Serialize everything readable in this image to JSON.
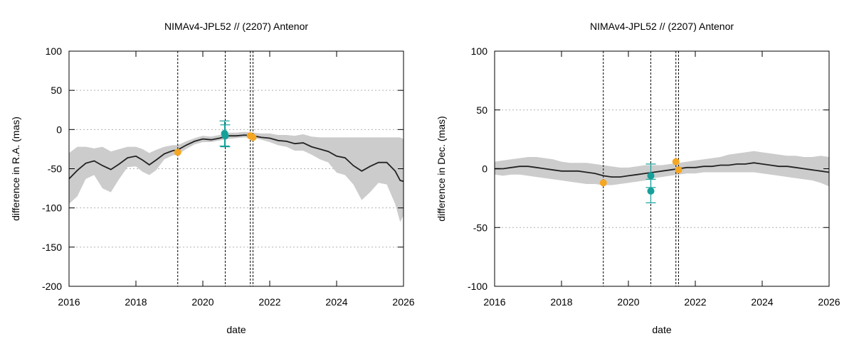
{
  "chart_data": [
    {
      "type": "scatter",
      "title": "NIMAv4-JPL52 // (2207) Antenor",
      "xlabel": "date",
      "ylabel": "difference in R.A. (mas)",
      "xlim": [
        2016,
        2026
      ],
      "ylim": [
        -200,
        100
      ],
      "xticks": [
        2016,
        2018,
        2020,
        2022,
        2024,
        2026
      ],
      "yticks": [
        -200,
        -150,
        -100,
        -50,
        0,
        50,
        100
      ],
      "grid": true,
      "vlines": [
        2019.25,
        2020.67,
        2021.42,
        2021.5
      ],
      "series": [
        {
          "name": "difference curve",
          "kind": "line",
          "color": "#222222",
          "x": [
            2016.0,
            2016.25,
            2016.5,
            2016.75,
            2017.0,
            2017.25,
            2017.5,
            2017.75,
            2018.0,
            2018.2,
            2018.4,
            2018.6,
            2018.85,
            2019.1,
            2019.25,
            2019.5,
            2019.75,
            2020.0,
            2020.25,
            2020.5,
            2020.75,
            2021.0,
            2021.25,
            2021.5,
            2021.75,
            2022.0,
            2022.25,
            2022.5,
            2022.75,
            2023.0,
            2023.25,
            2023.5,
            2023.75,
            2024.0,
            2024.25,
            2024.5,
            2024.75,
            2025.0,
            2025.25,
            2025.5,
            2025.75,
            2025.9,
            2026.0
          ],
          "y": [
            -63,
            -52,
            -43,
            -40,
            -46,
            -51,
            -44,
            -36,
            -34,
            -39,
            -45,
            -39,
            -31,
            -27,
            -26,
            -20,
            -15,
            -12,
            -13,
            -11,
            -8,
            -8,
            -7,
            -8,
            -10,
            -11,
            -14,
            -15,
            -18,
            -17,
            -22,
            -25,
            -28,
            -34,
            -36,
            -46,
            -53,
            -47,
            -42,
            -42,
            -53,
            -65,
            -66
          ]
        },
        {
          "name": "uncertainty band",
          "kind": "band",
          "color": "#cccccc",
          "x": [
            2016.0,
            2016.25,
            2016.5,
            2016.75,
            2017.0,
            2017.25,
            2017.5,
            2017.75,
            2018.0,
            2018.2,
            2018.4,
            2018.6,
            2018.85,
            2019.1,
            2019.25,
            2019.5,
            2019.75,
            2020.0,
            2020.25,
            2020.5,
            2020.75,
            2021.0,
            2021.25,
            2021.5,
            2021.75,
            2022.0,
            2022.25,
            2022.5,
            2022.75,
            2023.0,
            2023.25,
            2023.5,
            2023.75,
            2024.0,
            2024.25,
            2024.5,
            2024.75,
            2025.0,
            2025.25,
            2025.5,
            2025.75,
            2025.9,
            2026.0
          ],
          "low": [
            -95,
            -85,
            -63,
            -58,
            -75,
            -80,
            -63,
            -48,
            -47,
            -54,
            -58,
            -52,
            -38,
            -33,
            -32,
            -25,
            -19,
            -16,
            -16,
            -14,
            -12,
            -11,
            -10,
            -11,
            -13,
            -16,
            -20,
            -22,
            -27,
            -27,
            -32,
            -38,
            -42,
            -55,
            -58,
            -70,
            -90,
            -80,
            -68,
            -70,
            -95,
            -118,
            -110
          ],
          "high": [
            -30,
            -22,
            -22,
            -24,
            -22,
            -28,
            -25,
            -22,
            -22,
            -25,
            -30,
            -26,
            -22,
            -20,
            -20,
            -15,
            -11,
            -8,
            -9,
            -7,
            -4,
            -4,
            -3,
            -4,
            -5,
            -5,
            -7,
            -7,
            -8,
            -6,
            -9,
            -10,
            -10,
            -10,
            -10,
            -10,
            -10,
            -10,
            -10,
            -10,
            -10,
            -10,
            -12
          ]
        },
        {
          "name": "teal observations",
          "kind": "points",
          "color": "#16a09a",
          "x": [
            2020.65,
            2020.67
          ],
          "y": [
            -5,
            -8
          ],
          "err": [
            16,
            14
          ]
        },
        {
          "name": "orange observations",
          "kind": "points",
          "color": "#f5a623",
          "x": [
            2019.25,
            2021.42,
            2021.5
          ],
          "y": [
            -29,
            -8,
            -10
          ],
          "err": [
            0,
            0,
            0
          ]
        }
      ]
    },
    {
      "type": "scatter",
      "title": "NIMAv4-JPL52 // (2207) Antenor",
      "xlabel": "date",
      "ylabel": "difference in Dec. (mas)",
      "xlim": [
        2016,
        2026
      ],
      "ylim": [
        -100,
        100
      ],
      "xticks": [
        2016,
        2018,
        2020,
        2022,
        2024,
        2026
      ],
      "yticks": [
        -100,
        -50,
        0,
        50,
        100
      ],
      "grid": true,
      "vlines": [
        2019.25,
        2020.67,
        2021.42,
        2021.5
      ],
      "series": [
        {
          "name": "difference curve",
          "kind": "line",
          "color": "#222222",
          "x": [
            2016.0,
            2016.25,
            2016.5,
            2016.75,
            2017.0,
            2017.25,
            2017.5,
            2017.75,
            2018.0,
            2018.25,
            2018.5,
            2018.75,
            2019.0,
            2019.25,
            2019.5,
            2019.75,
            2020.0,
            2020.25,
            2020.5,
            2020.75,
            2021.0,
            2021.25,
            2021.5,
            2021.75,
            2022.0,
            2022.25,
            2022.5,
            2022.75,
            2023.0,
            2023.25,
            2023.5,
            2023.75,
            2024.0,
            2024.25,
            2024.5,
            2024.75,
            2025.0,
            2025.25,
            2025.5,
            2025.75,
            2026.0
          ],
          "y": [
            0,
            0,
            1,
            2,
            2,
            1,
            0,
            -1,
            -2,
            -2,
            -2,
            -3,
            -4,
            -6,
            -7,
            -7,
            -6,
            -5,
            -4,
            -3,
            -2,
            -1,
            0,
            1,
            1,
            2,
            2,
            3,
            3,
            4,
            4,
            5,
            4,
            3,
            2,
            2,
            1,
            0,
            -1,
            -2,
            -3
          ]
        },
        {
          "name": "uncertainty band",
          "kind": "band",
          "color": "#cccccc",
          "x": [
            2016.0,
            2016.25,
            2016.5,
            2016.75,
            2017.0,
            2017.25,
            2017.5,
            2017.75,
            2018.0,
            2018.25,
            2018.5,
            2018.75,
            2019.0,
            2019.25,
            2019.5,
            2019.75,
            2020.0,
            2020.25,
            2020.5,
            2020.75,
            2021.0,
            2021.25,
            2021.5,
            2021.75,
            2022.0,
            2022.25,
            2022.5,
            2022.75,
            2023.0,
            2023.25,
            2023.5,
            2023.75,
            2024.0,
            2024.25,
            2024.5,
            2024.75,
            2025.0,
            2025.25,
            2025.5,
            2025.75,
            2026.0
          ],
          "low": [
            -5,
            -6,
            -5,
            -5,
            -6,
            -7,
            -8,
            -9,
            -10,
            -11,
            -12,
            -13,
            -13,
            -14,
            -14,
            -13,
            -12,
            -11,
            -10,
            -8,
            -7,
            -6,
            -5,
            -4,
            -4,
            -3,
            -3,
            -3,
            -3,
            -3,
            -3,
            -3,
            -4,
            -5,
            -6,
            -7,
            -8,
            -9,
            -10,
            -12,
            -15
          ],
          "high": [
            6,
            7,
            8,
            9,
            10,
            10,
            9,
            8,
            6,
            5,
            5,
            5,
            4,
            3,
            2,
            1,
            1,
            2,
            3,
            3,
            3,
            4,
            5,
            6,
            7,
            8,
            9,
            10,
            12,
            13,
            14,
            15,
            14,
            13,
            12,
            11,
            11,
            10,
            10,
            11,
            10
          ]
        },
        {
          "name": "teal observations",
          "kind": "points",
          "color": "#16a09a",
          "x": [
            2020.67,
            2020.67
          ],
          "y": [
            -6,
            -19
          ],
          "err": [
            10,
            10
          ]
        },
        {
          "name": "orange observations",
          "kind": "points",
          "color": "#f5a623",
          "x": [
            2019.25,
            2021.42,
            2021.5
          ],
          "y": [
            -12,
            6,
            -1
          ],
          "err": [
            0,
            0,
            0
          ]
        }
      ]
    }
  ]
}
